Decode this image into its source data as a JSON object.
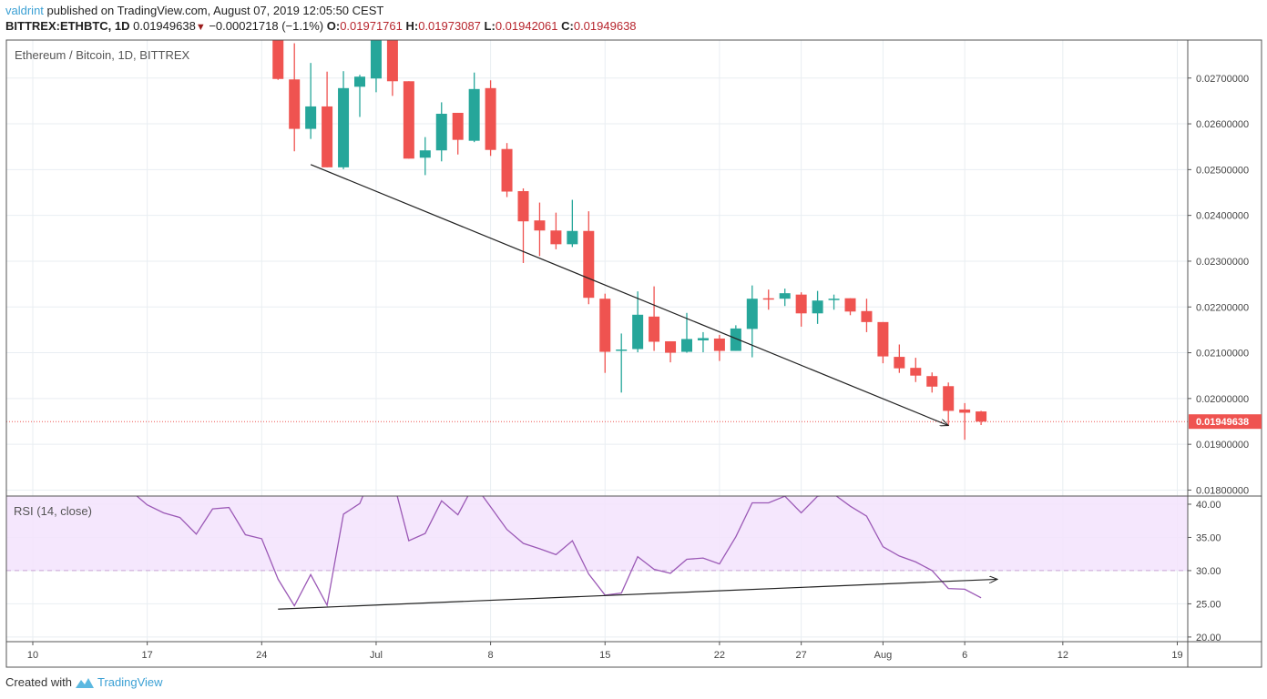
{
  "header": {
    "author": "valdrint",
    "published_text": " published on TradingView.com, August 07, 2019 12:05:50 CEST",
    "symbol": "BITTREX:ETHBTC, 1D",
    "last_price": "0.01949638",
    "change": "−0.00021718 (−1.1%)",
    "change_icon": "triangle-down-icon",
    "ohlc": {
      "o_label": "O:",
      "o": "0.01971761",
      "h_label": "H:",
      "h": "0.01973087",
      "l_label": "L:",
      "l": "0.01942061",
      "c_label": "C:",
      "c": "0.01949638"
    }
  },
  "pane_title": "Ethereum / Bitcoin, 1D, BITTREX",
  "rsi_title": "RSI (14, close)",
  "footer": {
    "created_with": "Created with",
    "brand": "TradingView",
    "logo_icon": "tradingview-logo-icon"
  },
  "colors": {
    "up": "#26a69a",
    "down": "#ef5350",
    "rsi_line": "#9b59b6",
    "rsi_band": "#f3e3fd",
    "grid": "#e9eef2",
    "last_price": "#ef5350",
    "trendline": "#222222"
  },
  "chart_data": [
    {
      "type": "candlestick",
      "title": "Ethereum / Bitcoin, 1D, BITTREX",
      "ylim": [
        0.01787,
        0.02783
      ],
      "grid": true,
      "y_ticks": [
        "0.02700000",
        "0.02600000",
        "0.02500000",
        "0.02400000",
        "0.02300000",
        "0.02200000",
        "0.02100000",
        "0.02000000",
        "0.01900000",
        "0.01800000"
      ],
      "last_price": 0.01949638,
      "last_price_label": "0.01949638",
      "x_ticks": [
        {
          "label": "10",
          "date": "2019-06-10"
        },
        {
          "label": "17",
          "date": "2019-06-17"
        },
        {
          "label": "24",
          "date": "2019-06-24"
        },
        {
          "label": "Jul",
          "date": "2019-07-01"
        },
        {
          "label": "8",
          "date": "2019-07-08"
        },
        {
          "label": "15",
          "date": "2019-07-15"
        },
        {
          "label": "22",
          "date": "2019-07-22"
        },
        {
          "label": "27",
          "date": "2019-07-27"
        },
        {
          "label": "Aug",
          "date": "2019-08-01"
        },
        {
          "label": "6",
          "date": "2019-08-06"
        },
        {
          "label": "12",
          "date": "2019-08-12"
        },
        {
          "label": "19",
          "date": "2019-08-19"
        }
      ],
      "candles": [
        {
          "d": "2019-06-25",
          "o": 0.0284,
          "h": 0.029,
          "l": 0.02696,
          "c": 0.02698
        },
        {
          "d": "2019-06-26",
          "o": 0.02697,
          "h": 0.02776,
          "l": 0.0254,
          "c": 0.02589
        },
        {
          "d": "2019-06-27",
          "o": 0.02589,
          "h": 0.02733,
          "l": 0.02567,
          "c": 0.02638
        },
        {
          "d": "2019-06-28",
          "o": 0.02638,
          "h": 0.02714,
          "l": 0.02505,
          "c": 0.02505
        },
        {
          "d": "2019-06-29",
          "o": 0.02505,
          "h": 0.02715,
          "l": 0.02501,
          "c": 0.02678
        },
        {
          "d": "2019-06-30",
          "o": 0.02681,
          "h": 0.02707,
          "l": 0.02615,
          "c": 0.02703
        },
        {
          "d": "2019-07-01",
          "o": 0.02699,
          "h": 0.0286,
          "l": 0.02669,
          "c": 0.0282
        },
        {
          "d": "2019-07-02",
          "o": 0.0282,
          "h": 0.0284,
          "l": 0.02661,
          "c": 0.02693
        },
        {
          "d": "2019-07-03",
          "o": 0.02693,
          "h": 0.02693,
          "l": 0.02524,
          "c": 0.02524
        },
        {
          "d": "2019-07-04",
          "o": 0.02526,
          "h": 0.02571,
          "l": 0.02488,
          "c": 0.02542
        },
        {
          "d": "2019-07-05",
          "o": 0.02542,
          "h": 0.02647,
          "l": 0.02518,
          "c": 0.02622
        },
        {
          "d": "2019-07-06",
          "o": 0.02624,
          "h": 0.02624,
          "l": 0.02533,
          "c": 0.02565
        },
        {
          "d": "2019-07-07",
          "o": 0.02563,
          "h": 0.02712,
          "l": 0.0256,
          "c": 0.02676
        },
        {
          "d": "2019-07-08",
          "o": 0.02678,
          "h": 0.02695,
          "l": 0.0253,
          "c": 0.02543
        },
        {
          "d": "2019-07-09",
          "o": 0.02545,
          "h": 0.02558,
          "l": 0.0244,
          "c": 0.02452
        },
        {
          "d": "2019-07-10",
          "o": 0.02453,
          "h": 0.02459,
          "l": 0.02296,
          "c": 0.02387
        },
        {
          "d": "2019-07-11",
          "o": 0.02389,
          "h": 0.02428,
          "l": 0.02311,
          "c": 0.02367
        },
        {
          "d": "2019-07-12",
          "o": 0.02367,
          "h": 0.02406,
          "l": 0.02326,
          "c": 0.02337
        },
        {
          "d": "2019-07-13",
          "o": 0.02337,
          "h": 0.02434,
          "l": 0.02331,
          "c": 0.02366
        },
        {
          "d": "2019-07-14",
          "o": 0.02366,
          "h": 0.02409,
          "l": 0.02206,
          "c": 0.0222
        },
        {
          "d": "2019-07-15",
          "o": 0.02218,
          "h": 0.02229,
          "l": 0.02056,
          "c": 0.02102
        },
        {
          "d": "2019-07-16",
          "o": 0.02105,
          "h": 0.02142,
          "l": 0.02013,
          "c": 0.02107
        },
        {
          "d": "2019-07-17",
          "o": 0.02108,
          "h": 0.02234,
          "l": 0.02101,
          "c": 0.02183
        },
        {
          "d": "2019-07-18",
          "o": 0.02179,
          "h": 0.02245,
          "l": 0.02104,
          "c": 0.02124
        },
        {
          "d": "2019-07-19",
          "o": 0.02125,
          "h": 0.02125,
          "l": 0.02079,
          "c": 0.021
        },
        {
          "d": "2019-07-20",
          "o": 0.02102,
          "h": 0.02187,
          "l": 0.021,
          "c": 0.0213
        },
        {
          "d": "2019-07-21",
          "o": 0.02127,
          "h": 0.02145,
          "l": 0.02101,
          "c": 0.02132
        },
        {
          "d": "2019-07-22",
          "o": 0.02131,
          "h": 0.02139,
          "l": 0.02082,
          "c": 0.02104
        },
        {
          "d": "2019-07-23",
          "o": 0.02104,
          "h": 0.0216,
          "l": 0.02104,
          "c": 0.02153
        },
        {
          "d": "2019-07-24",
          "o": 0.02152,
          "h": 0.02247,
          "l": 0.0209,
          "c": 0.02218
        },
        {
          "d": "2019-07-25",
          "o": 0.02219,
          "h": 0.02238,
          "l": 0.02194,
          "c": 0.02217
        },
        {
          "d": "2019-07-26",
          "o": 0.02218,
          "h": 0.0224,
          "l": 0.02202,
          "c": 0.0223
        },
        {
          "d": "2019-07-27",
          "o": 0.02227,
          "h": 0.02232,
          "l": 0.02157,
          "c": 0.02186
        },
        {
          "d": "2019-07-28",
          "o": 0.02186,
          "h": 0.02235,
          "l": 0.02163,
          "c": 0.02214
        },
        {
          "d": "2019-07-29",
          "o": 0.02215,
          "h": 0.02227,
          "l": 0.02194,
          "c": 0.02218
        },
        {
          "d": "2019-07-30",
          "o": 0.02219,
          "h": 0.02219,
          "l": 0.02182,
          "c": 0.0219
        },
        {
          "d": "2019-07-31",
          "o": 0.02191,
          "h": 0.02218,
          "l": 0.02145,
          "c": 0.02167
        },
        {
          "d": "2019-08-01",
          "o": 0.02167,
          "h": 0.02167,
          "l": 0.02077,
          "c": 0.02092
        },
        {
          "d": "2019-08-02",
          "o": 0.02091,
          "h": 0.02118,
          "l": 0.02056,
          "c": 0.02066
        },
        {
          "d": "2019-08-03",
          "o": 0.02067,
          "h": 0.02089,
          "l": 0.02036,
          "c": 0.0205
        },
        {
          "d": "2019-08-04",
          "o": 0.02049,
          "h": 0.02057,
          "l": 0.02013,
          "c": 0.02026
        },
        {
          "d": "2019-08-05",
          "o": 0.02027,
          "h": 0.02035,
          "l": 0.0194,
          "c": 0.01973
        },
        {
          "d": "2019-08-06",
          "o": 0.01976,
          "h": 0.0199,
          "l": 0.0191,
          "c": 0.01969
        },
        {
          "d": "2019-08-07",
          "o": 0.01971761,
          "h": 0.01973087,
          "l": 0.01942061,
          "c": 0.01949638
        }
      ],
      "trendline": {
        "from": {
          "d": "2019-06-27",
          "v": 0.02511
        },
        "to": {
          "d": "2019-08-05",
          "v": 0.01941
        },
        "arrow": true
      }
    },
    {
      "type": "line",
      "title": "RSI (14, close)",
      "ylim": [
        19.3,
        41.23
      ],
      "y_ticks": [
        "40.00",
        "35.00",
        "30.00",
        "25.00",
        "20.00"
      ],
      "band": [
        30,
        70
      ],
      "band_line": 30,
      "series": [
        {
          "points": [
            [
              "2019-06-16",
              42
            ],
            [
              "2019-06-17",
              39.9
            ],
            [
              "2019-06-18",
              38.7
            ],
            [
              "2019-06-19",
              38.0
            ],
            [
              "2019-06-20",
              35.5
            ],
            [
              "2019-06-21",
              39.3
            ],
            [
              "2019-06-22",
              39.5
            ],
            [
              "2019-06-23",
              35.4
            ],
            [
              "2019-06-24",
              34.8
            ],
            [
              "2019-06-25",
              28.7
            ],
            [
              "2019-06-26",
              24.7
            ],
            [
              "2019-06-27",
              29.4
            ],
            [
              "2019-06-28",
              24.8
            ],
            [
              "2019-06-29",
              38.5
            ],
            [
              "2019-06-30",
              40.1
            ],
            [
              "2019-07-01",
              46
            ],
            [
              "2019-07-02",
              44
            ],
            [
              "2019-07-03",
              34.5
            ],
            [
              "2019-07-04",
              35.6
            ],
            [
              "2019-07-05",
              40.5
            ],
            [
              "2019-07-06",
              38.4
            ],
            [
              "2019-07-07",
              43
            ],
            [
              "2019-07-08",
              39.6
            ],
            [
              "2019-07-09",
              36.2
            ],
            [
              "2019-07-10",
              34.1
            ],
            [
              "2019-07-11",
              33.3
            ],
            [
              "2019-07-12",
              32.4
            ],
            [
              "2019-07-13",
              34.5
            ],
            [
              "2019-07-14",
              29.5
            ],
            [
              "2019-07-15",
              26.3
            ],
            [
              "2019-07-16",
              26.6
            ],
            [
              "2019-07-17",
              32.1
            ],
            [
              "2019-07-18",
              30.2
            ],
            [
              "2019-07-19",
              29.6
            ],
            [
              "2019-07-20",
              31.7
            ],
            [
              "2019-07-21",
              31.9
            ],
            [
              "2019-07-22",
              31.0
            ],
            [
              "2019-07-23",
              35.1
            ],
            [
              "2019-07-24",
              40.2
            ],
            [
              "2019-07-25",
              40.2
            ],
            [
              "2019-07-26",
              41.2
            ],
            [
              "2019-07-27",
              38.7
            ],
            [
              "2019-07-28",
              41.2
            ],
            [
              "2019-07-29",
              41.5
            ],
            [
              "2019-07-30",
              39.7
            ],
            [
              "2019-07-31",
              38.2
            ],
            [
              "2019-08-01",
              33.6
            ],
            [
              "2019-08-02",
              32.2
            ],
            [
              "2019-08-03",
              31.3
            ],
            [
              "2019-08-04",
              30.0
            ],
            [
              "2019-08-05",
              27.3
            ],
            [
              "2019-08-06",
              27.2
            ],
            [
              "2019-08-07",
              25.9
            ]
          ]
        }
      ],
      "trendline": {
        "from": {
          "d": "2019-06-25",
          "v": 24.2
        },
        "to": {
          "d": "2019-08-08",
          "v": 28.7
        },
        "arrow": true
      }
    }
  ]
}
